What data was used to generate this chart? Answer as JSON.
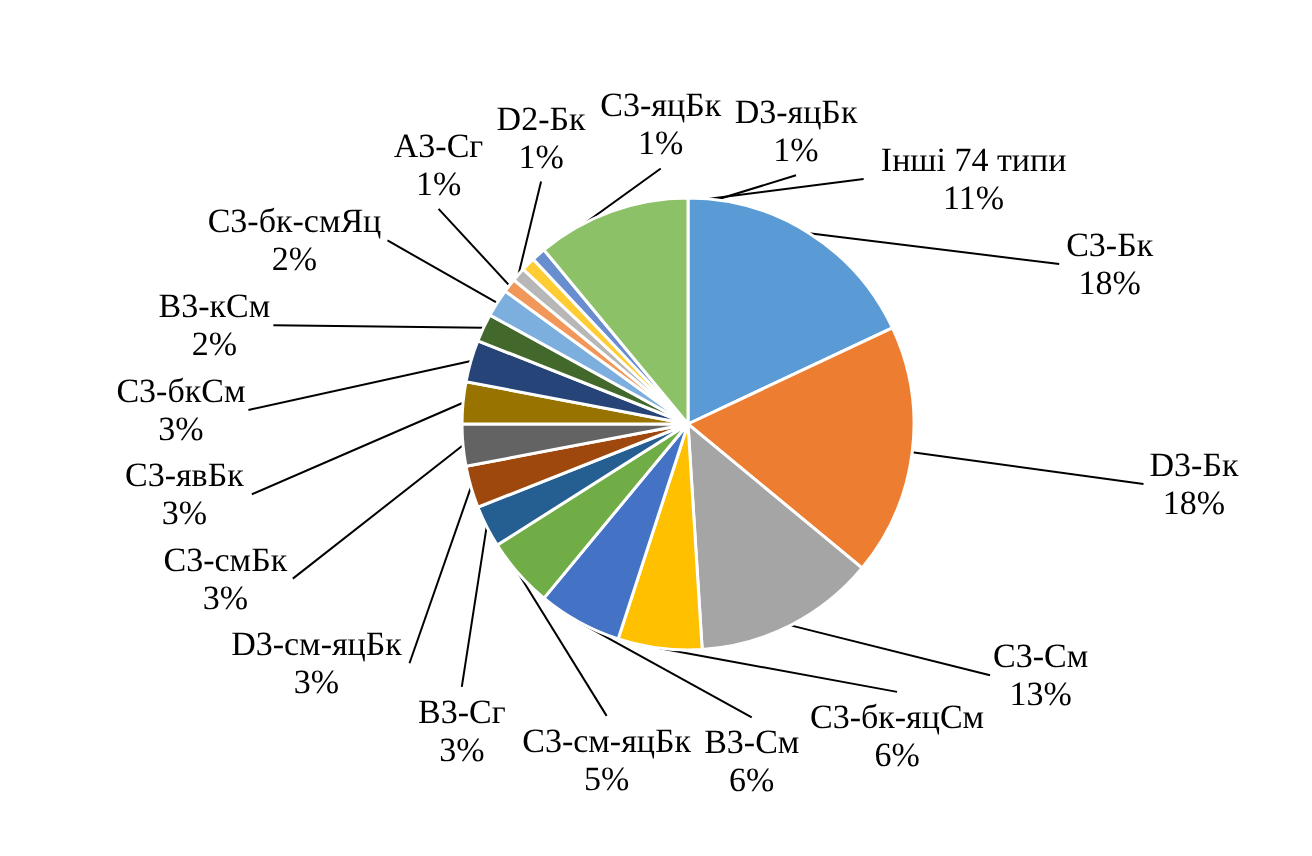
{
  "chart_data": {
    "type": "pie",
    "categories": [
      "С3-Бк",
      "D3-Бк",
      "С3-См",
      "С3-бк-яцСм",
      "В3-См",
      "С3-см-яцБк",
      "В3-Сг",
      "D3-см-яцБк",
      "С3-смБк",
      "С3-явБк",
      "С3-бкСм",
      "В3-кСм",
      "С3-бк-смЯц",
      "А3-Сг",
      "D2-Бк",
      "С3-яцБк",
      "D3-яцБк",
      "Інші 74 типи"
    ],
    "values": [
      18,
      18,
      13,
      6,
      6,
      5,
      3,
      3,
      3,
      3,
      3,
      2,
      2,
      1,
      1,
      1,
      1,
      11
    ],
    "value_labels": [
      "18%",
      "18%",
      "13%",
      "6%",
      "6%",
      "5%",
      "3%",
      "3%",
      "3%",
      "3%",
      "3%",
      "2%",
      "2%",
      "1%",
      "1%",
      "1%",
      "1%",
      "11%"
    ],
    "colors": [
      "#5b9bd5",
      "#ed7d31",
      "#a5a5a5",
      "#ffc000",
      "#4472c4",
      "#70ad47",
      "#255e91",
      "#9e480e",
      "#636363",
      "#997300",
      "#264478",
      "#43682b",
      "#7cafdd",
      "#f1975a",
      "#b7b7b7",
      "#ffcd33",
      "#698ed0",
      "#8cc168"
    ]
  }
}
